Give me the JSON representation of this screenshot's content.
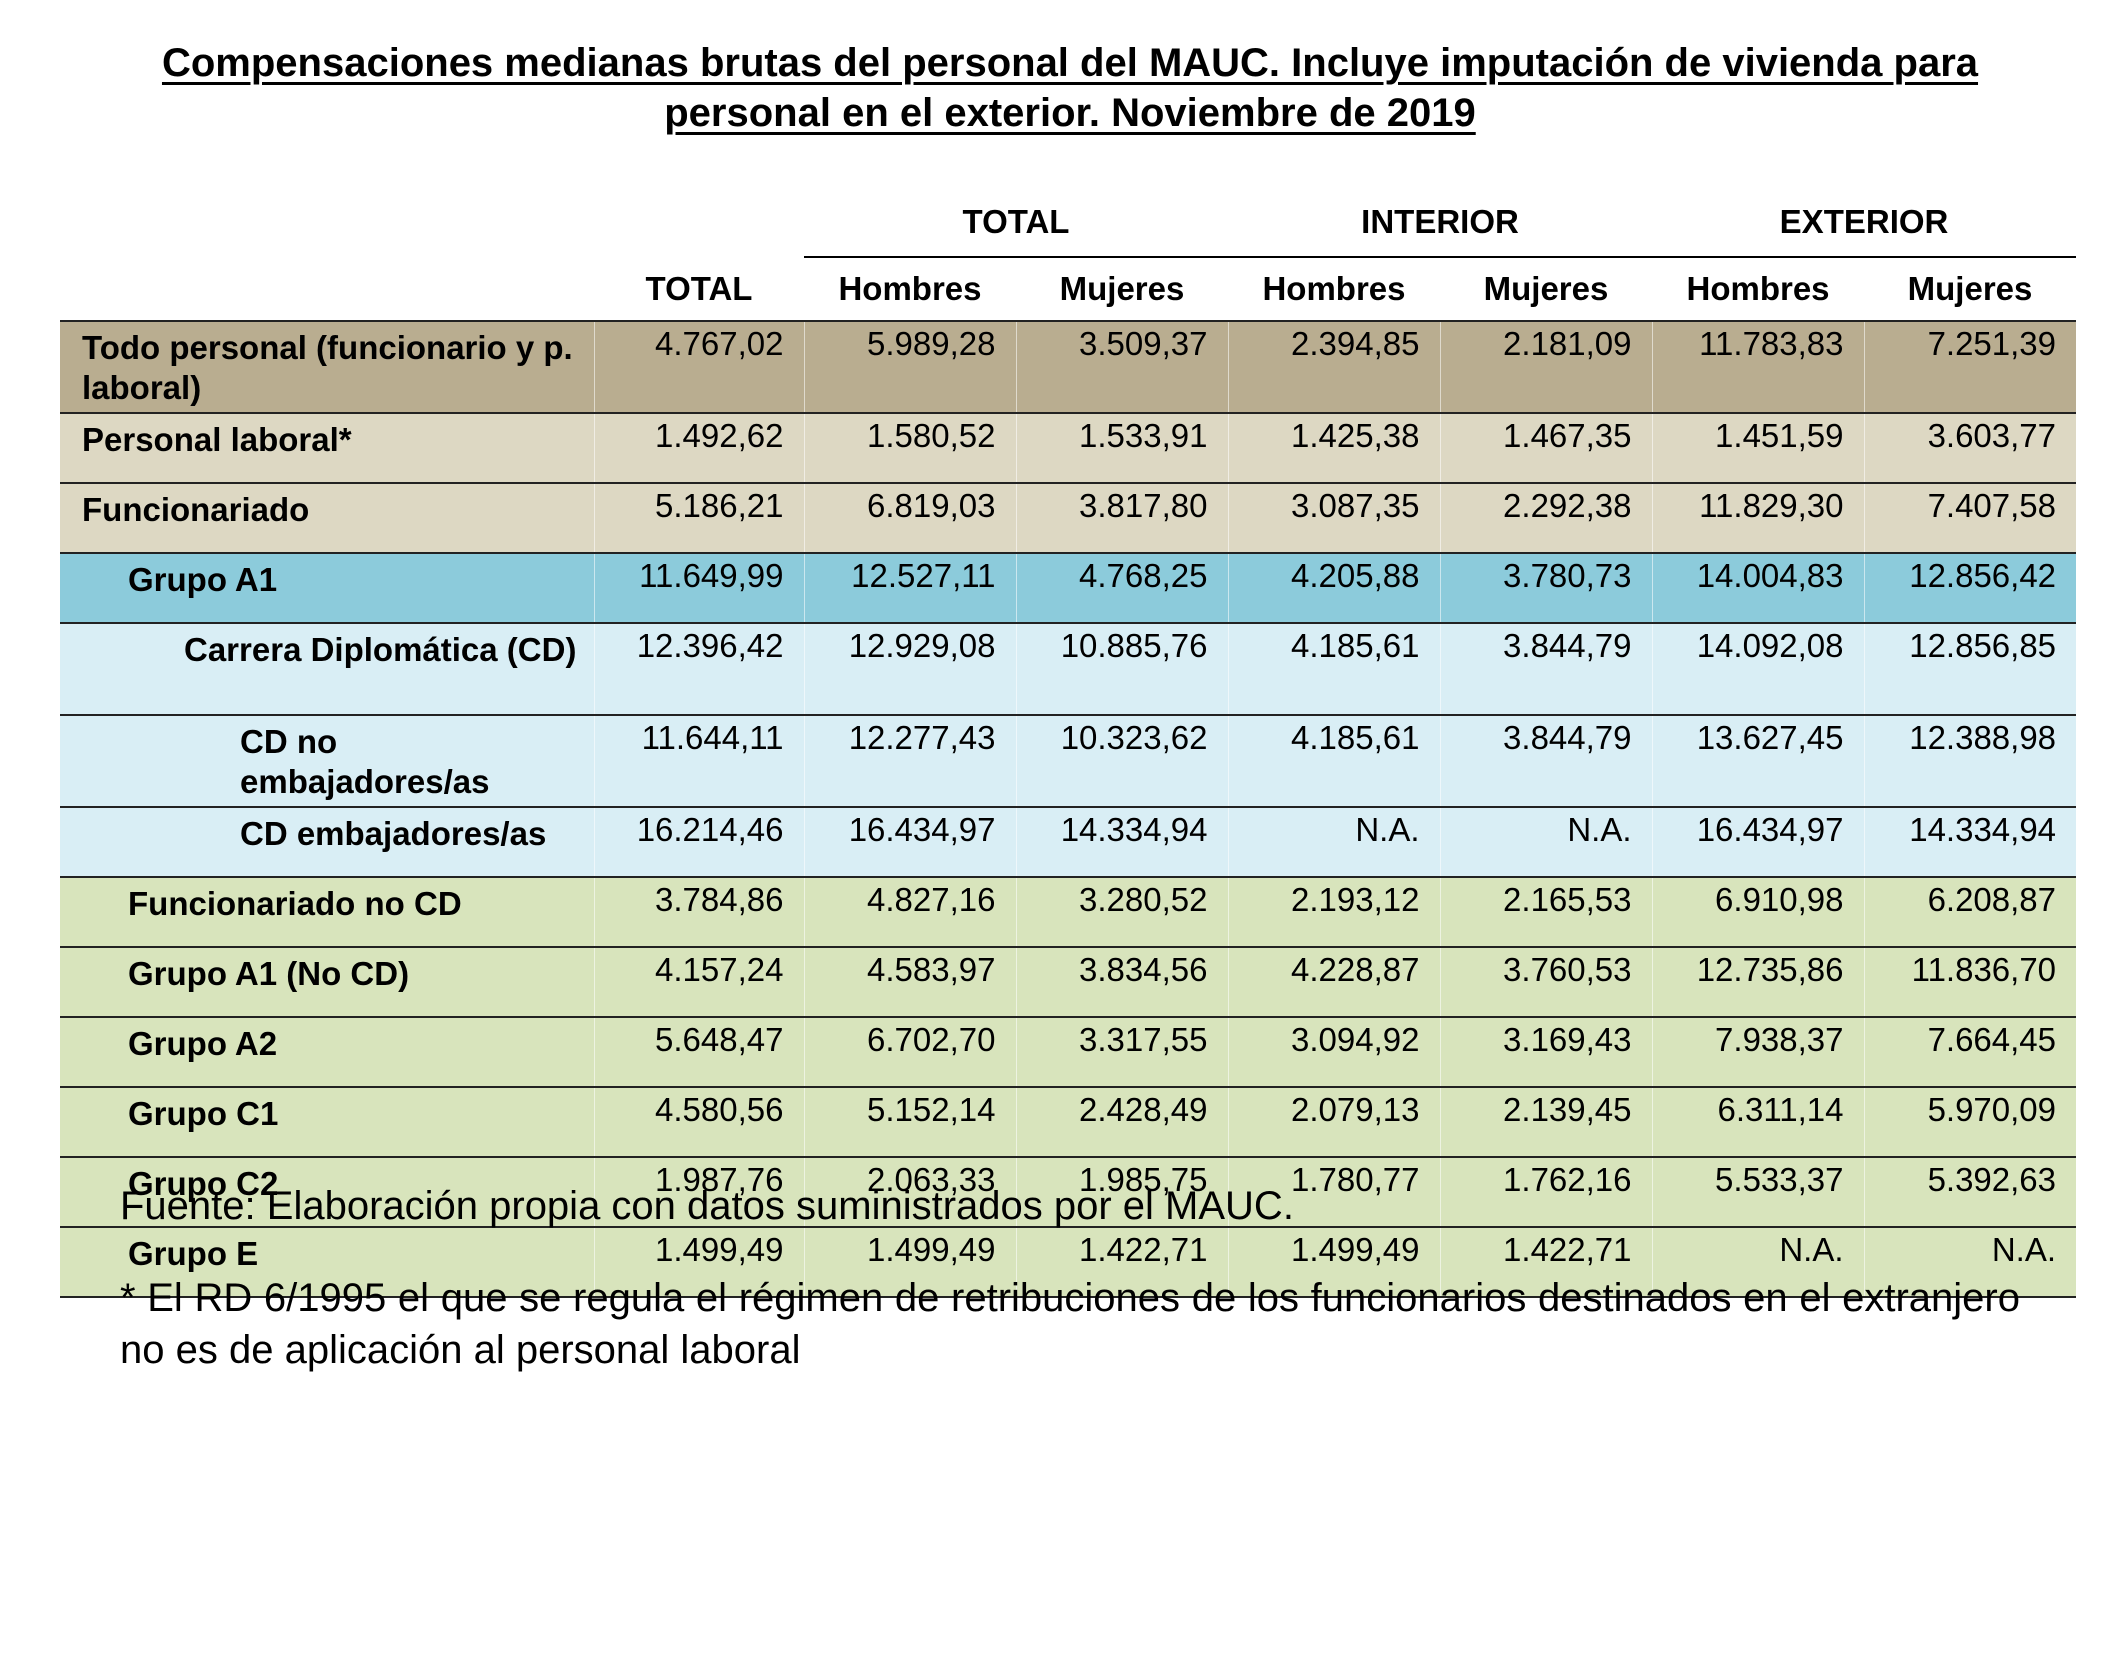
{
  "title": "Compensaciones medianas brutas del personal del MAUC. Incluye imputación de vivienda para personal en el exterior. Noviembre de 2019",
  "colors": {
    "todo_personal": "#b9ad90",
    "personal_laboral": "#ddd8c3",
    "funcionariado": "#ddd8c3",
    "grupo_a1": "#8ccbdb",
    "carrera_diplomatica": "#d9eef5",
    "otros_grupos": "#d8e4bc"
  },
  "table": {
    "group_headers": [
      "TOTAL",
      "INTERIOR",
      "EXTERIOR"
    ],
    "sub_headers": [
      "TOTAL",
      "Hombres",
      "Mujeres",
      "Hombres",
      "Mujeres",
      "Hombres",
      "Mujeres"
    ],
    "rows": [
      {
        "label": "Todo personal (funcionario y p. laboral)",
        "values": [
          "4.767,02",
          "5.989,28",
          "3.509,37",
          "2.394,85",
          "2.181,09",
          "11.783,83",
          "7.251,39"
        ]
      },
      {
        "label": "Personal laboral*",
        "values": [
          "1.492,62",
          "1.580,52",
          "1.533,91",
          "1.425,38",
          "1.467,35",
          "1.451,59",
          "3.603,77"
        ]
      },
      {
        "label": "Funcionariado",
        "values": [
          "5.186,21",
          "6.819,03",
          "3.817,80",
          "3.087,35",
          "2.292,38",
          "11.829,30",
          "7.407,58"
        ]
      },
      {
        "label": "Grupo A1",
        "values": [
          "11.649,99",
          "12.527,11",
          "4.768,25",
          "4.205,88",
          "3.780,73",
          "14.004,83",
          "12.856,42"
        ]
      },
      {
        "label": "Carrera Diplomática (CD)",
        "values": [
          "12.396,42",
          "12.929,08",
          "10.885,76",
          "4.185,61",
          "3.844,79",
          "14.092,08",
          "12.856,85"
        ]
      },
      {
        "label": "CD no embajadores/as",
        "values": [
          "11.644,11",
          "12.277,43",
          "10.323,62",
          "4.185,61",
          "3.844,79",
          "13.627,45",
          "12.388,98"
        ]
      },
      {
        "label": "CD embajadores/as",
        "values": [
          "16.214,46",
          "16.434,97",
          "14.334,94",
          "N.A.",
          "N.A.",
          "16.434,97",
          "14.334,94"
        ]
      },
      {
        "label": "Funcionariado no CD",
        "values": [
          "3.784,86",
          "4.827,16",
          "3.280,52",
          "2.193,12",
          "2.165,53",
          "6.910,98",
          "6.208,87"
        ]
      },
      {
        "label": "Grupo A1 (No CD)",
        "values": [
          "4.157,24",
          "4.583,97",
          "3.834,56",
          "4.228,87",
          "3.760,53",
          "12.735,86",
          "11.836,70"
        ]
      },
      {
        "label": "Grupo A2",
        "values": [
          "5.648,47",
          "6.702,70",
          "3.317,55",
          "3.094,92",
          "3.169,43",
          "7.938,37",
          "7.664,45"
        ]
      },
      {
        "label": "Grupo C1",
        "values": [
          "4.580,56",
          "5.152,14",
          "2.428,49",
          "2.079,13",
          "2.139,45",
          "6.311,14",
          "5.970,09"
        ]
      },
      {
        "label": "Grupo C2",
        "values": [
          "1.987,76",
          "2.063,33",
          "1.985,75",
          "1.780,77",
          "1.762,16",
          "5.533,37",
          "5.392,63"
        ]
      },
      {
        "label": "Grupo E",
        "values": [
          "1.499,49",
          "1.499,49",
          "1.422,71",
          "1.499,49",
          "1.422,71",
          "N.A.",
          "N.A."
        ]
      }
    ]
  },
  "source": "Fuente: Elaboración propia con datos suministrados por el MAUC.",
  "footnote": "* El RD 6/1995 el que se regula el régimen de retribuciones de los funcionarios destinados en el extranjero no es de aplicación al personal laboral"
}
